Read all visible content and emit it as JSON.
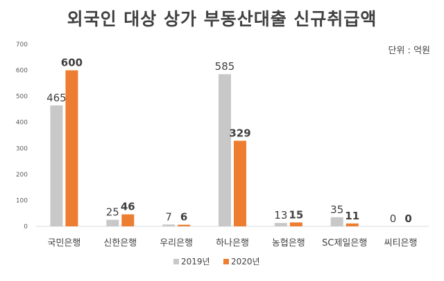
{
  "chart_data": {
    "type": "bar",
    "title": "외국인 대상 상가 부동산대출 신규취급액",
    "unit_label": "단위 : 억원",
    "categories": [
      "국민은행",
      "신한은행",
      "우리은행",
      "하나은행",
      "농협은행",
      "SC제일은행",
      "씨티은행"
    ],
    "series": [
      {
        "name": "2019년",
        "color": "#c8c8c8",
        "values": [
          465,
          25,
          7,
          585,
          13,
          35,
          0
        ]
      },
      {
        "name": "2020년",
        "color": "#ed7d31",
        "values": [
          600,
          46,
          6,
          329,
          15,
          11,
          0
        ]
      }
    ],
    "ylim": [
      0,
      700
    ],
    "yticks": [
      0,
      100,
      200,
      300,
      400,
      500,
      600,
      700
    ],
    "grid": false,
    "legend": "bottom"
  }
}
